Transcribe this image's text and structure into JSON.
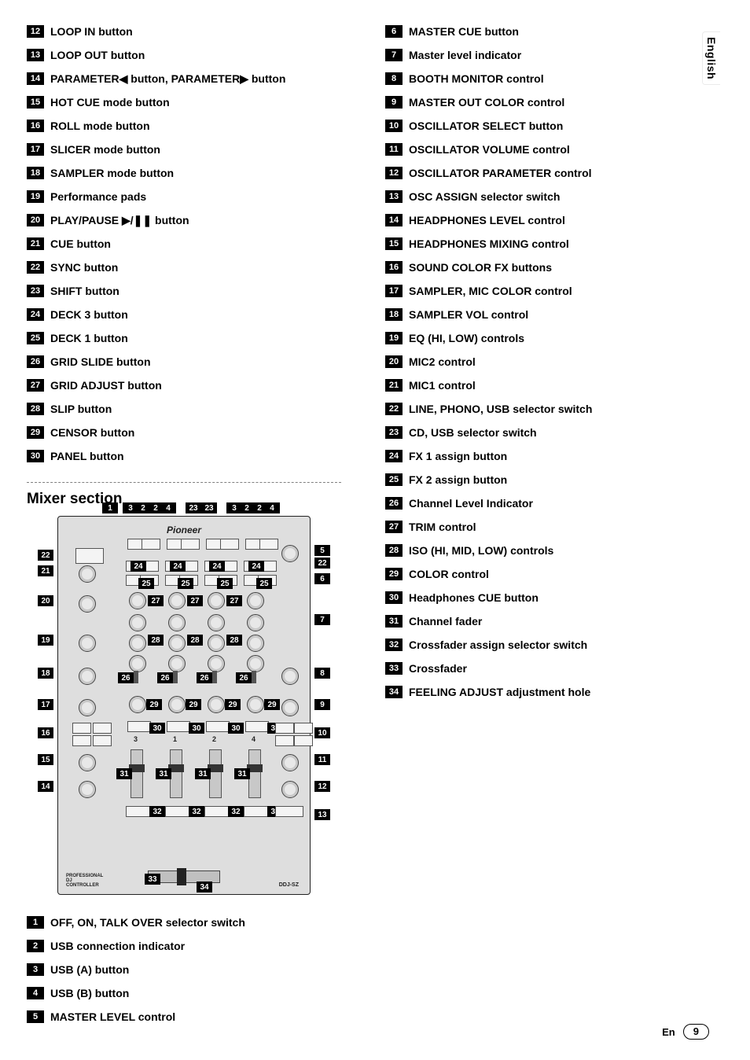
{
  "language_tab": "English",
  "footer": {
    "lang_code": "En",
    "page_number": "9"
  },
  "mixer_section_heading": "Mixer section",
  "diagram": {
    "brand": "Pioneer",
    "model": "DDJ-SZ",
    "bottom_left_text": "PROFESSIONAL DJ CONTROLLER",
    "top_badges": [
      "1",
      "3",
      "2",
      "2",
      "4",
      "23",
      "23",
      "3",
      "2",
      "2",
      "4"
    ],
    "left_badges": [
      "22",
      "21",
      "20",
      "19",
      "18",
      "17",
      "16",
      "15",
      "14"
    ],
    "right_badges": [
      "5",
      "22",
      "6",
      "7",
      "8",
      "9",
      "10",
      "11",
      "12",
      "13"
    ],
    "inner_labels_row1": [
      "24",
      "24",
      "24",
      "24"
    ],
    "inner_labels_row2": [
      "25",
      "25",
      "25",
      "25"
    ],
    "inner_labels_row3": [
      "27",
      "27",
      "27"
    ],
    "inner_labels_row4": [
      "28",
      "28",
      "28"
    ],
    "inner_labels_row5": [
      "26",
      "26",
      "26",
      "26"
    ],
    "inner_labels_row6": [
      "29",
      "29",
      "29",
      "29"
    ],
    "inner_labels_row7": [
      "30",
      "30",
      "30",
      "30"
    ],
    "channel_numbers": [
      "3",
      "1",
      "2",
      "4"
    ],
    "inner_labels_row8": [
      "31",
      "31",
      "31",
      "31"
    ],
    "inner_labels_row9": [
      "32",
      "32",
      "32",
      "32"
    ],
    "bottom_badges": [
      "33",
      "34"
    ]
  },
  "left_list_top": [
    {
      "n": "12",
      "t": "LOOP IN button"
    },
    {
      "n": "13",
      "t": "LOOP OUT button"
    },
    {
      "n": "14",
      "t": "PARAMETER◀ button, PARAMETER▶ button"
    },
    {
      "n": "15",
      "t": "HOT CUE mode button"
    },
    {
      "n": "16",
      "t": "ROLL mode button"
    },
    {
      "n": "17",
      "t": "SLICER mode button"
    },
    {
      "n": "18",
      "t": "SAMPLER mode button"
    },
    {
      "n": "19",
      "t": "Performance pads"
    },
    {
      "n": "20",
      "t": "PLAY/PAUSE ▶/❚❚ button"
    },
    {
      "n": "21",
      "t": "CUE button"
    },
    {
      "n": "22",
      "t": "SYNC button"
    },
    {
      "n": "23",
      "t": "SHIFT button"
    },
    {
      "n": "24",
      "t": "DECK 3 button"
    },
    {
      "n": "25",
      "t": "DECK 1 button"
    },
    {
      "n": "26",
      "t": "GRID SLIDE button"
    },
    {
      "n": "27",
      "t": "GRID ADJUST button"
    },
    {
      "n": "28",
      "t": "SLIP button"
    },
    {
      "n": "29",
      "t": "CENSOR button"
    },
    {
      "n": "30",
      "t": "PANEL button"
    }
  ],
  "left_list_bottom": [
    {
      "n": "1",
      "t": "OFF, ON, TALK OVER selector switch"
    },
    {
      "n": "2",
      "t": "USB connection indicator"
    },
    {
      "n": "3",
      "t": "USB (A) button"
    },
    {
      "n": "4",
      "t": "USB (B) button"
    },
    {
      "n": "5",
      "t": "MASTER LEVEL control"
    }
  ],
  "right_list": [
    {
      "n": "6",
      "t": "MASTER CUE button"
    },
    {
      "n": "7",
      "t": "Master level indicator"
    },
    {
      "n": "8",
      "t": "BOOTH MONITOR control"
    },
    {
      "n": "9",
      "t": "MASTER OUT COLOR control"
    },
    {
      "n": "10",
      "t": "OSCILLATOR SELECT button"
    },
    {
      "n": "11",
      "t": "OSCILLATOR VOLUME control"
    },
    {
      "n": "12",
      "t": "OSCILLATOR PARAMETER control"
    },
    {
      "n": "13",
      "t": "OSC ASSIGN selector switch"
    },
    {
      "n": "14",
      "t": "HEADPHONES LEVEL control"
    },
    {
      "n": "15",
      "t": "HEADPHONES MIXING control"
    },
    {
      "n": "16",
      "t": "SOUND COLOR FX buttons"
    },
    {
      "n": "17",
      "t": "SAMPLER, MIC COLOR control"
    },
    {
      "n": "18",
      "t": "SAMPLER VOL control"
    },
    {
      "n": "19",
      "t": "EQ (HI, LOW) controls"
    },
    {
      "n": "20",
      "t": "MIC2 control"
    },
    {
      "n": "21",
      "t": "MIC1 control"
    },
    {
      "n": "22",
      "t": "LINE, PHONO, USB selector switch"
    },
    {
      "n": "23",
      "t": "CD, USB selector switch"
    },
    {
      "n": "24",
      "t": "FX 1 assign button"
    },
    {
      "n": "25",
      "t": "FX 2 assign button"
    },
    {
      "n": "26",
      "t": "Channel Level Indicator"
    },
    {
      "n": "27",
      "t": "TRIM control"
    },
    {
      "n": "28",
      "t": "ISO (HI, MID, LOW) controls"
    },
    {
      "n": "29",
      "t": "COLOR control"
    },
    {
      "n": "30",
      "t": "Headphones CUE button"
    },
    {
      "n": "31",
      "t": "Channel fader"
    },
    {
      "n": "32",
      "t": "Crossfader assign selector switch"
    },
    {
      "n": "33",
      "t": "Crossfader"
    },
    {
      "n": "34",
      "t": "FEELING ADJUST adjustment hole"
    }
  ]
}
